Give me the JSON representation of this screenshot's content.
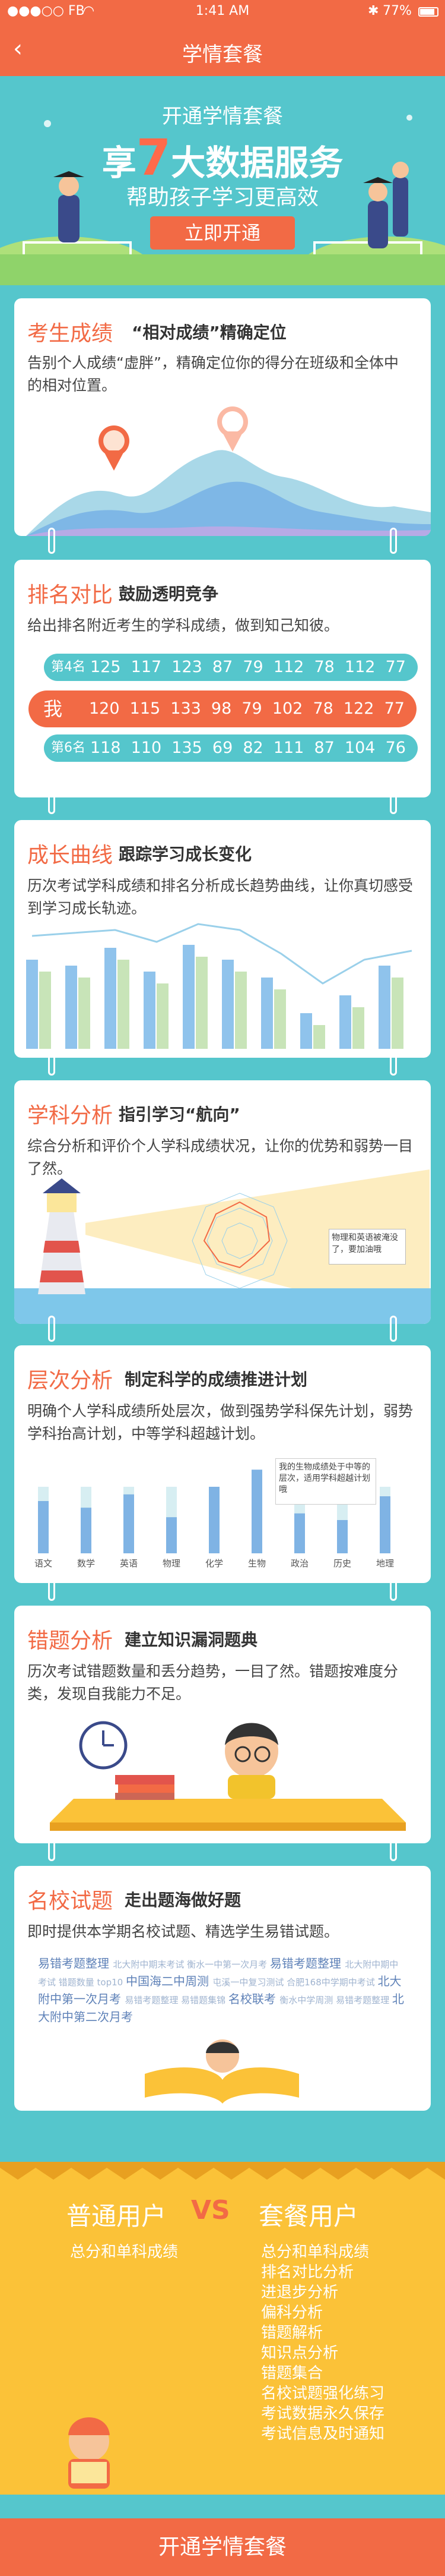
{
  "status": {
    "carrier": "●●●○○ FB",
    "wifi": "wifi-icon",
    "time": "1:41 AM",
    "battery": "77%"
  },
  "nav": {
    "title": "学情套餐"
  },
  "hero": {
    "line1": "开通学情套餐",
    "line2_pre": "享",
    "line2_num": "7",
    "line2_post": "大数据服务",
    "line3": "帮助孩子学习更高效",
    "button": "立即开通"
  },
  "cards": {
    "c1": {
      "title": "考生成绩",
      "subtitle": "“相对成绩”精确定位",
      "desc": "告别个人成绩“虚胖”，精确定位你的得分在班级和全体中的相对位置。"
    },
    "c2": {
      "title": "排名对比",
      "subtitle": "鼓励透明竞争",
      "desc": "给出排名附近考生的学科成绩，做到知己知彼。",
      "rows": [
        {
          "label": "第4名",
          "values": [
            "125",
            "117",
            "123",
            "87",
            "79",
            "112",
            "78",
            "112",
            "77"
          ]
        },
        {
          "label": "我",
          "values": [
            "120",
            "115",
            "133",
            "98",
            "79",
            "102",
            "78",
            "122",
            "77"
          ]
        },
        {
          "label": "第6名",
          "values": [
            "118",
            "110",
            "135",
            "69",
            "82",
            "111",
            "87",
            "104",
            "76"
          ]
        }
      ]
    },
    "c3": {
      "title": "成长曲线",
      "subtitle": "跟踪学习成长变化",
      "desc": "历次考试学科成绩和排名分析成长趋势曲线，让你真切感受到学习成长轨迹。"
    },
    "c4": {
      "title": "学科分析",
      "subtitle": "指引学习“航向”",
      "desc": "综合分析和评价个人学科成绩状况，让你的优势和弱势一目了然。",
      "note": "物理和英语被淹没了，要加油哦"
    },
    "c5": {
      "title": "层次分析",
      "subtitle": "制定科学的成绩推进计划",
      "desc": "明确个人学科成绩所处层次，做到强势学科保先计划，弱势学科抬高计划，中等学科超越计划。",
      "note": "我的生物成绩处于中等的层次，适用学科超越计划哦",
      "subjects": [
        "语文",
        "数学",
        "英语",
        "物理",
        "化学",
        "生物",
        "政治",
        "历史",
        "地理"
      ]
    },
    "c6": {
      "title": "错题分析",
      "subtitle": "建立知识漏洞题典",
      "desc": "历次考试错题数量和丢分趋势，一目了然。错题按难度分类，发现自我能力不足。"
    },
    "c7": {
      "title": "名校试题",
      "subtitle": "走出题海做好题",
      "desc": "即时提供本学期名校试题、精选学生易错试题。",
      "cloud": [
        "易错考题整理",
        "北大附中期末考试",
        "衡水一中第一次月考",
        "易错考题整理",
        "北大附中期中考试",
        "错题数量 top10",
        "中国海二中周测",
        "屯溪一中复习测试",
        "合肥168中学期中考试",
        "北大附中第一次月考",
        "易错考题整理",
        "易错题集锦",
        "名校联考",
        "衡水中学周测",
        "易错考题整理",
        "北大附中第二次月考"
      ]
    }
  },
  "compare": {
    "left": "普通用户",
    "vs": "VS",
    "right": "套餐用户",
    "left_items": [
      "总分和单科成绩"
    ],
    "right_items": [
      "总分和单科成绩",
      "排名对比分析",
      "进退步分析",
      "偏科分析",
      "错题解析",
      "知识点分析",
      "错题集合",
      "名校试题强化练习",
      "考试数据永久保存",
      "考试信息及时通知"
    ]
  },
  "cta": {
    "label": "开通学情套餐"
  },
  "chart_data": [
    {
      "type": "table",
      "title": "排名对比",
      "rows": [
        {
          "name": "第4名",
          "values": [
            125,
            117,
            123,
            87,
            79,
            112,
            78,
            112,
            77
          ]
        },
        {
          "name": "我",
          "values": [
            120,
            115,
            133,
            98,
            79,
            102,
            78,
            122,
            77
          ]
        },
        {
          "name": "第6名",
          "values": [
            118,
            110,
            135,
            69,
            82,
            111,
            87,
            104,
            76
          ]
        }
      ]
    },
    {
      "type": "bar",
      "title": "层次分析",
      "categories": [
        "语文",
        "数学",
        "英语",
        "物理",
        "化学",
        "生物",
        "政治",
        "历史",
        "地理"
      ],
      "series": [
        {
          "values": [
            55,
            48,
            62,
            38,
            70,
            88,
            42,
            35,
            60
          ]
        }
      ],
      "ylim": [
        0,
        100
      ]
    }
  ]
}
